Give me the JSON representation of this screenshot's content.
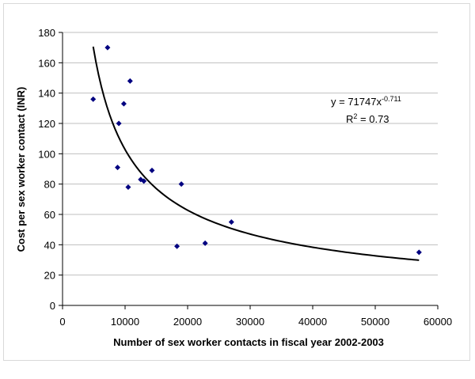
{
  "chart_data": {
    "type": "scatter",
    "title": "",
    "xlabel": "Number of sex worker contacts in fiscal year 2002-2003",
    "ylabel": "Cost per sex worker contact (INR)",
    "xlim": [
      0,
      60000
    ],
    "ylim": [
      0,
      180
    ],
    "x_ticks": [
      0,
      10000,
      20000,
      30000,
      40000,
      50000,
      60000
    ],
    "x_tick_labels": [
      "0",
      "10000",
      "20000",
      "30000",
      "40000",
      "50000",
      "60000"
    ],
    "y_ticks": [
      0,
      20,
      40,
      60,
      80,
      100,
      120,
      140,
      160,
      180
    ],
    "y_tick_labels": [
      "0",
      "20",
      "40",
      "60",
      "80",
      "100",
      "120",
      "140",
      "160",
      "180"
    ],
    "grid": "horizontal",
    "legend": "none",
    "point_color": "#000080",
    "trendline_color": "#000000",
    "series": [
      {
        "points": [
          {
            "x": 4900,
            "y": 136
          },
          {
            "x": 7200,
            "y": 170
          },
          {
            "x": 8800,
            "y": 91
          },
          {
            "x": 9000,
            "y": 120
          },
          {
            "x": 9800,
            "y": 133
          },
          {
            "x": 10500,
            "y": 78
          },
          {
            "x": 10800,
            "y": 148
          },
          {
            "x": 12500,
            "y": 83
          },
          {
            "x": 13000,
            "y": 82
          },
          {
            "x": 14300,
            "y": 89
          },
          {
            "x": 18300,
            "y": 39
          },
          {
            "x": 19000,
            "y": 80
          },
          {
            "x": 22800,
            "y": 41
          },
          {
            "x": 27000,
            "y": 55
          },
          {
            "x": 57000,
            "y": 35
          }
        ]
      }
    ],
    "trendline": {
      "type": "power",
      "a": 71747,
      "b": -0.711,
      "x_range": [
        4900,
        57000
      ]
    },
    "annotations": {
      "equation_base": "y = 71747x",
      "equation_exp": "-0.711",
      "r2_prefix": "R",
      "r2_sup": "2",
      "r2_value": " = 0.73"
    }
  }
}
